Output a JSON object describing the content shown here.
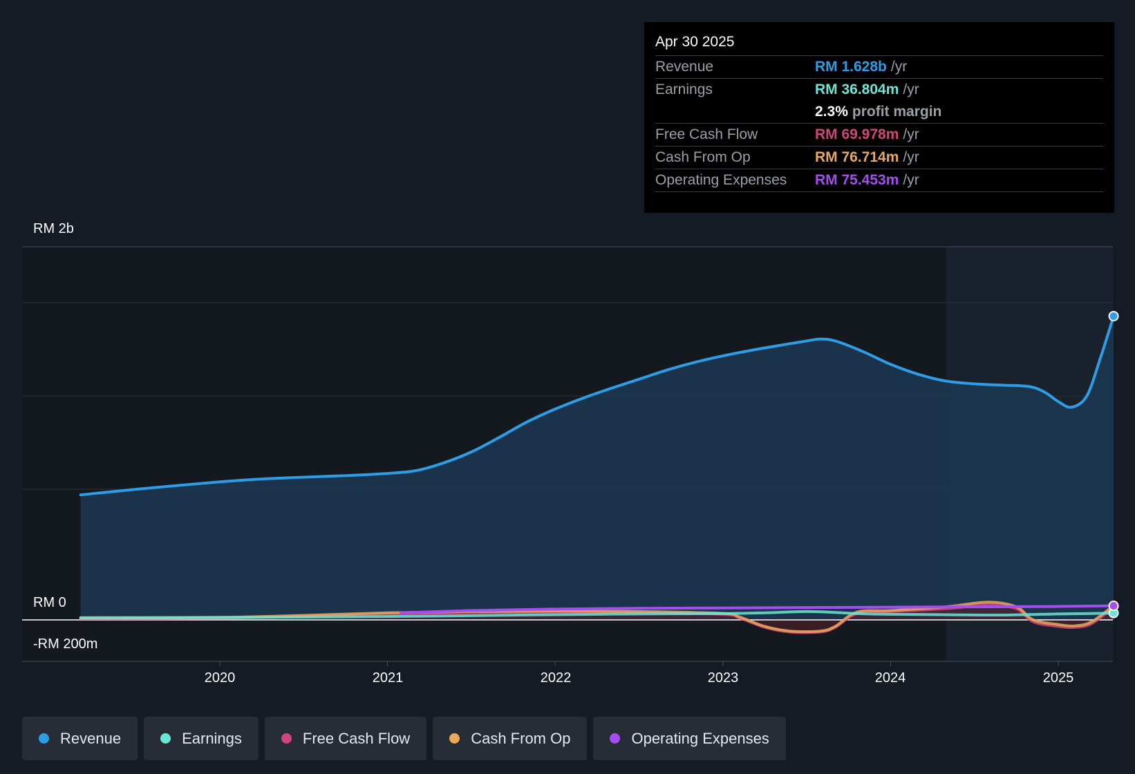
{
  "tooltip": {
    "date": "Apr 30 2025",
    "rows": [
      {
        "label": "Revenue",
        "value": "RM 1.628b",
        "unit": "/yr",
        "color": "#2d9de6"
      },
      {
        "label": "Earnings",
        "value": "RM 36.804m",
        "unit": "/yr",
        "color": "#6de5d6"
      },
      {
        "label": "Free Cash Flow",
        "value": "RM 69.978m",
        "unit": "/yr",
        "color": "#d1447e"
      },
      {
        "label": "Cash From Op",
        "value": "RM 76.714m",
        "unit": "/yr",
        "color": "#e8a95c"
      },
      {
        "label": "Operating Expenses",
        "value": "RM 75.453m",
        "unit": "/yr",
        "color": "#a54ef0"
      }
    ],
    "margin": {
      "value": "2.3%",
      "text": "profit margin"
    }
  },
  "legend": [
    {
      "label": "Revenue",
      "color": "#2d9de6"
    },
    {
      "label": "Earnings",
      "color": "#6de5d6"
    },
    {
      "label": "Free Cash Flow",
      "color": "#d1447e"
    },
    {
      "label": "Cash From Op",
      "color": "#e8a95c"
    },
    {
      "label": "Operating Expenses",
      "color": "#a54ef0"
    }
  ],
  "chart_data": {
    "type": "area",
    "title": "",
    "ylim": [
      -200000000,
      2000000000
    ],
    "ytick_labels": [
      "RM 2b",
      "RM 0",
      "-RM 200m"
    ],
    "xtick_labels": [
      "2020",
      "2021",
      "2022",
      "2023",
      "2024",
      "2025"
    ],
    "x_range": [
      2019.17,
      2025.33
    ],
    "forecast_start": 2024.33,
    "series": [
      {
        "name": "Revenue",
        "color": "#2d9de6",
        "x": [
          2019.17,
          2019.5,
          2020.0,
          2020.25,
          2020.5,
          2020.75,
          2021.0,
          2021.17,
          2021.33,
          2021.5,
          2021.67,
          2021.83,
          2022.0,
          2022.17,
          2022.33,
          2022.5,
          2022.67,
          2022.83,
          2023.0,
          2023.17,
          2023.33,
          2023.5,
          2023.58,
          2023.67,
          2023.83,
          2024.0,
          2024.17,
          2024.33,
          2024.5,
          2024.67,
          2024.83,
          2024.92,
          2025.0,
          2025.08,
          2025.17,
          2025.25,
          2025.33
        ],
        "y": [
          670,
          700,
          740,
          755,
          765,
          773,
          785,
          800,
          840,
          900,
          980,
          1060,
          1130,
          1190,
          1240,
          1290,
          1340,
          1380,
          1415,
          1445,
          1470,
          1495,
          1505,
          1495,
          1440,
          1370,
          1315,
          1280,
          1265,
          1258,
          1250,
          1220,
          1170,
          1140,
          1200,
          1400,
          1628
        ]
      },
      {
        "name": "Earnings",
        "color": "#6de5d6",
        "x": [
          2019.17,
          2020.0,
          2021.0,
          2022.0,
          2022.5,
          2023.0,
          2023.25,
          2023.5,
          2023.67,
          2023.83,
          2024.0,
          2024.33,
          2024.67,
          2025.0,
          2025.17,
          2025.33
        ],
        "y": [
          10,
          12,
          18,
          28,
          32,
          34,
          38,
          45,
          40,
          33,
          30,
          28,
          26,
          32,
          34,
          36.804
        ]
      },
      {
        "name": "Free Cash Flow",
        "color": "#d1447e",
        "x": [
          2019.17,
          2020.0,
          2020.5,
          2021.0,
          2021.5,
          2022.0,
          2022.5,
          2023.0,
          2023.1,
          2023.25,
          2023.4,
          2023.58,
          2023.67,
          2023.8,
          2024.0,
          2024.33,
          2024.58,
          2024.75,
          2024.85,
          2025.0,
          2025.1,
          2025.2,
          2025.33
        ],
        "y": [
          8,
          10,
          20,
          32,
          40,
          42,
          40,
          30,
          10,
          -40,
          -65,
          -65,
          -40,
          35,
          45,
          60,
          80,
          60,
          -10,
          -35,
          -40,
          -20,
          69.978
        ]
      },
      {
        "name": "Cash From Op",
        "color": "#e8a95c",
        "x": [
          2019.17,
          2020.0,
          2020.5,
          2021.0,
          2021.5,
          2022.0,
          2022.5,
          2023.0,
          2023.1,
          2023.25,
          2023.4,
          2023.58,
          2023.67,
          2023.8,
          2024.0,
          2024.33,
          2024.58,
          2024.75,
          2024.85,
          2025.0,
          2025.1,
          2025.2,
          2025.33
        ],
        "y": [
          12,
          14,
          24,
          38,
          45,
          47,
          45,
          35,
          15,
          -35,
          -60,
          -60,
          -35,
          42,
          50,
          70,
          95,
          70,
          0,
          -25,
          -32,
          -10,
          76.714
        ]
      },
      {
        "name": "Operating Expenses",
        "color": "#a54ef0",
        "x": [
          2021.08,
          2021.5,
          2022.0,
          2022.5,
          2023.0,
          2023.5,
          2024.0,
          2024.5,
          2025.0,
          2025.33
        ],
        "y": [
          38,
          50,
          58,
          62,
          64,
          66,
          68,
          70,
          72,
          75.453
        ]
      }
    ],
    "y_unit": "RM millions"
  }
}
